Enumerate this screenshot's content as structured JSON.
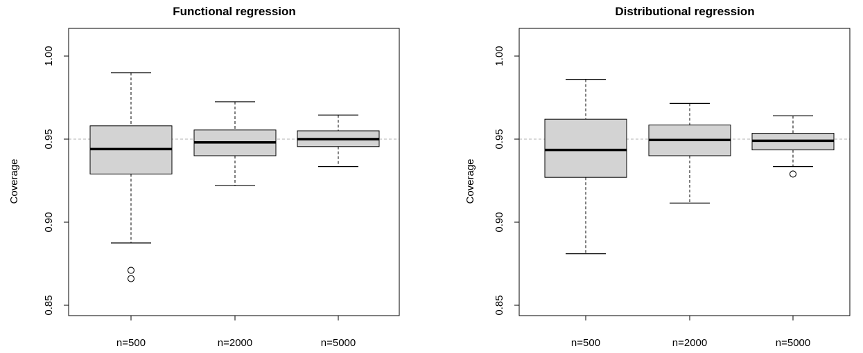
{
  "chart_data": [
    {
      "type": "boxplot",
      "title": "Functional regression",
      "ylabel": "Coverage",
      "xlabel": "",
      "ylim": [
        0.85,
        1.0
      ],
      "yticks": [
        "0.85",
        "0.90",
        "0.95",
        "1.00"
      ],
      "reference_line": 0.95,
      "categories": [
        "n=500",
        "n=2000",
        "n=5000"
      ],
      "boxes": [
        {
          "whisker_low": 0.8875,
          "q1": 0.929,
          "median": 0.944,
          "q3": 0.958,
          "whisker_high": 0.99,
          "outliers": [
            0.871,
            0.866
          ]
        },
        {
          "whisker_low": 0.922,
          "q1": 0.94,
          "median": 0.948,
          "q3": 0.9555,
          "whisker_high": 0.9725,
          "outliers": []
        },
        {
          "whisker_low": 0.9335,
          "q1": 0.9455,
          "median": 0.95,
          "q3": 0.955,
          "whisker_high": 0.9645,
          "outliers": []
        }
      ]
    },
    {
      "type": "boxplot",
      "title": "Distributional regression",
      "ylabel": "Coverage",
      "xlabel": "",
      "ylim": [
        0.85,
        1.0
      ],
      "yticks": [
        "0.85",
        "0.90",
        "0.95",
        "1.00"
      ],
      "reference_line": 0.95,
      "categories": [
        "n=500",
        "n=2000",
        "n=5000"
      ],
      "boxes": [
        {
          "whisker_low": 0.881,
          "q1": 0.927,
          "median": 0.9435,
          "q3": 0.962,
          "whisker_high": 0.986,
          "outliers": []
        },
        {
          "whisker_low": 0.9115,
          "q1": 0.94,
          "median": 0.9495,
          "q3": 0.9585,
          "whisker_high": 0.9715,
          "outliers": []
        },
        {
          "whisker_low": 0.9335,
          "q1": 0.9435,
          "median": 0.949,
          "q3": 0.9535,
          "whisker_high": 0.964,
          "outliers": [
            0.929
          ]
        }
      ]
    }
  ]
}
